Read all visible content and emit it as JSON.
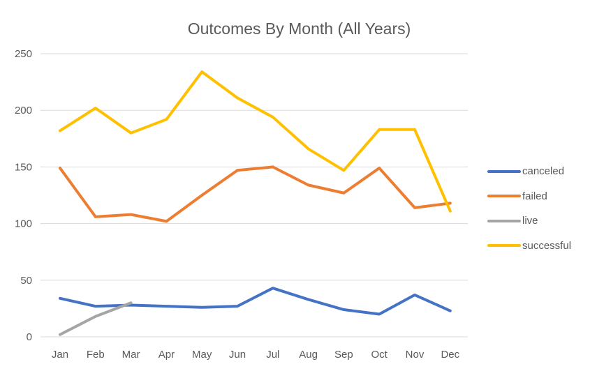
{
  "chart_data": {
    "type": "line",
    "title": "Outcomes By Month (All Years)",
    "xlabel": "",
    "ylabel": "",
    "categories": [
      "Jan",
      "Feb",
      "Mar",
      "Apr",
      "May",
      "Jun",
      "Jul",
      "Aug",
      "Sep",
      "Oct",
      "Nov",
      "Dec"
    ],
    "ylim": [
      0,
      250
    ],
    "yticks": [
      0,
      50,
      100,
      150,
      200,
      250
    ],
    "grid": true,
    "legend_position": "right",
    "series": [
      {
        "name": "canceled",
        "color": "#4472C4",
        "values": [
          34,
          27,
          28,
          27,
          26,
          27,
          43,
          33,
          24,
          20,
          37,
          23
        ]
      },
      {
        "name": "failed",
        "color": "#ED7D31",
        "values": [
          149,
          106,
          108,
          102,
          125,
          147,
          150,
          134,
          127,
          149,
          114,
          118
        ]
      },
      {
        "name": "live",
        "color": "#A5A5A5",
        "values": [
          2,
          18,
          30,
          null,
          null,
          null,
          null,
          null,
          null,
          null,
          null,
          null
        ]
      },
      {
        "name": "successful",
        "color": "#FFC000",
        "values": [
          182,
          202,
          180,
          192,
          234,
          211,
          194,
          166,
          147,
          183,
          183,
          111
        ]
      }
    ]
  }
}
